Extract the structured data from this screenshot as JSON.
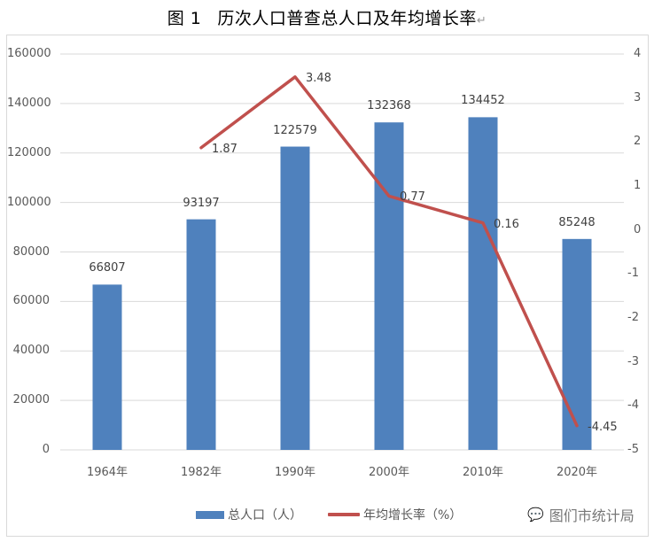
{
  "title": {
    "figure_no": "图 1",
    "text": "历次人口普查总人口及年均增长率",
    "return_mark": "↵"
  },
  "colors": {
    "bar": "#4f81bd",
    "line": "#c0504d",
    "grid": "#d9d9d9",
    "axis_text": "#595959"
  },
  "axes": {
    "left_ticks": [
      "160000",
      "140000",
      "120000",
      "100000",
      "80000",
      "60000",
      "40000",
      "20000",
      "0"
    ],
    "right_ticks": [
      "4",
      "3",
      "2",
      "1",
      "0",
      "-1",
      "-2",
      "-3",
      "-4",
      "-5"
    ],
    "x_ticks": [
      "1964年",
      "1982年",
      "1990年",
      "2000年",
      "2010年",
      "2020年"
    ]
  },
  "bar_labels": [
    "66807",
    "93197",
    "122579",
    "132368",
    "134452",
    "85248"
  ],
  "line_labels": [
    "1.87",
    "3.48",
    "0.77",
    "0.16",
    "-4.45"
  ],
  "legend": {
    "bar_label": "总人口（人）",
    "line_label": "年均增长率（%）"
  },
  "watermark": {
    "icon": "wechat-icon",
    "text": "图们市统计局"
  },
  "chart_data": {
    "type": "bar+line",
    "title": "图 1 历次人口普查总人口及年均增长率",
    "categories": [
      "1964年",
      "1982年",
      "1990年",
      "2000年",
      "2010年",
      "2020年"
    ],
    "series": [
      {
        "name": "总人口（人）",
        "type": "bar",
        "axis": "left",
        "values": [
          66807,
          93197,
          122579,
          132368,
          134452,
          85248
        ]
      },
      {
        "name": "年均增长率（%）",
        "type": "line",
        "axis": "right",
        "values": [
          null,
          1.87,
          3.48,
          0.77,
          0.16,
          -4.45
        ]
      }
    ],
    "ylim_left": [
      0,
      160000
    ],
    "ylim_right": [
      -5,
      4
    ],
    "grid": true,
    "legend_position": "bottom"
  }
}
